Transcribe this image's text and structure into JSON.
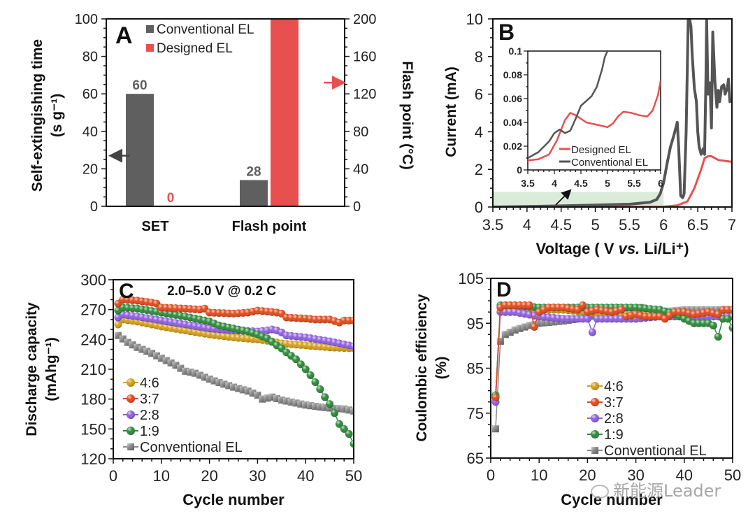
{
  "figure": {
    "watermark": "新能源Leader"
  },
  "chart_data": [
    {
      "panel": "A",
      "type": "bar",
      "categories": [
        "SET",
        "Flash point"
      ],
      "legend": [
        "Conventional EL",
        "Designed EL"
      ],
      "legend_position": "top-left",
      "series": [
        {
          "name": "Conventional EL",
          "color": "#5f5f5f",
          "axis": "left",
          "values": [
            60,
            null
          ]
        },
        {
          "name": "Conventional EL",
          "color": "#5f5f5f",
          "axis": "right",
          "values": [
            null,
            28
          ]
        },
        {
          "name": "Designed EL",
          "color": "#e8504f",
          "axis": "left",
          "values": [
            0,
            null
          ]
        },
        {
          "name": "Designed EL",
          "color": "#e8504f",
          "axis": "right",
          "values": [
            null,
            200
          ]
        }
      ],
      "data_labels": [
        {
          "text": "60",
          "category": "SET",
          "series": "Conventional EL",
          "color": "#5f5f5f"
        },
        {
          "text": "0",
          "category": "SET",
          "series": "Designed EL",
          "color": "#e8504f"
        },
        {
          "text": "28",
          "category": "Flash point",
          "series": "Conventional EL",
          "color": "#5f5f5f"
        }
      ],
      "ylabel": "Self-extingishing time",
      "ylabel_unit": "(s g⁻¹)",
      "y2label": "Flash point (°C)",
      "ylim": [
        0,
        100
      ],
      "y2lim": [
        0,
        200
      ],
      "yticks": [
        0,
        20,
        40,
        60,
        80,
        100
      ],
      "y2ticks": [
        0,
        40,
        80,
        120,
        160,
        200
      ],
      "annotations": [
        {
          "type": "arrow",
          "direction": "left",
          "axis": "left",
          "y": 27,
          "color": "#444444"
        },
        {
          "type": "arrow",
          "direction": "right",
          "axis": "right",
          "y": 132,
          "color": "#e8504f"
        }
      ]
    },
    {
      "panel": "B",
      "type": "line",
      "xlabel": "Voltage ( V vs. Li/Li⁺)",
      "xlabel_parts": [
        "Voltage ( V ",
        "vs.",
        " Li/Li⁺)"
      ],
      "ylabel": "Current (mA)",
      "xlim": [
        3.5,
        7
      ],
      "ylim": [
        0,
        10
      ],
      "xticks": [
        "3.5",
        "4",
        "4.5",
        "5",
        "5.5",
        "6",
        "6.5",
        "7"
      ],
      "yticks": [
        "0",
        "2",
        "4",
        "6",
        "8",
        "10"
      ],
      "highlight_region": {
        "x": [
          3.5,
          6
        ],
        "y": [
          0,
          0.8
        ],
        "color": "#d5e8d4"
      },
      "series": [
        {
          "name": "Conventional EL",
          "color": "#555555",
          "x": [
            3.5,
            4.0,
            4.5,
            5.0,
            5.5,
            5.8,
            5.9,
            5.95,
            6.0,
            6.05,
            6.1,
            6.15,
            6.2,
            6.22,
            6.25,
            6.28,
            6.3,
            6.33,
            6.36,
            6.38,
            6.4,
            6.42,
            6.45,
            6.48,
            6.5,
            6.52,
            6.55,
            6.58,
            6.6,
            6.62,
            6.63,
            6.65,
            6.68,
            6.7,
            6.72,
            6.75,
            6.78,
            6.8,
            6.82,
            6.85,
            6.88,
            6.9,
            6.93,
            6.95,
            6.97,
            7.0
          ],
          "y": [
            0.0,
            0.03,
            0.06,
            0.1,
            0.15,
            0.25,
            0.4,
            0.7,
            1.3,
            2.3,
            3.2,
            3.8,
            4.5,
            3.2,
            0.6,
            0.5,
            0.7,
            4.0,
            10.0,
            10.0,
            9.6,
            8.0,
            6.3,
            5.6,
            4.0,
            3.2,
            2.8,
            3.1,
            2.8,
            7.0,
            10.0,
            6.0,
            6.6,
            4.2,
            9.3,
            6.7,
            5.3,
            6.2,
            5.6,
            6.4,
            6.5,
            6.0,
            6.3,
            6.8,
            5.6,
            5.8
          ]
        },
        {
          "name": "Designed EL",
          "color": "#e8504f",
          "x": [
            3.5,
            5.0,
            6.0,
            6.2,
            6.35,
            6.45,
            6.55,
            6.6,
            6.65,
            6.7,
            6.75,
            6.8,
            6.9,
            7.0
          ],
          "y": [
            0.0,
            0.0,
            0.02,
            0.08,
            0.3,
            1.0,
            2.0,
            2.6,
            2.7,
            2.7,
            2.6,
            2.5,
            2.45,
            2.4
          ]
        }
      ],
      "inset": {
        "xlim": [
          3.5,
          6
        ],
        "ylim": [
          0,
          0.1
        ],
        "xticks": [
          "3.5",
          "4",
          "4.5",
          "5",
          "5.5",
          "6"
        ],
        "yticks": [
          "0",
          "0.02",
          "0.04",
          "0.06",
          "0.08",
          "0.1"
        ],
        "legend": [
          "Designed EL",
          "Conventional EL"
        ],
        "legend_position": "bottom-right",
        "series": [
          {
            "name": "Designed EL",
            "color": "#e8504f",
            "x": [
              3.5,
              3.7,
              3.9,
              4.05,
              4.2,
              4.3,
              4.4,
              4.6,
              4.8,
              5.0,
              5.1,
              5.2,
              5.3,
              5.45,
              5.6,
              5.75,
              5.85,
              5.95,
              6.0
            ],
            "y": [
              0.008,
              0.009,
              0.013,
              0.025,
              0.042,
              0.048,
              0.046,
              0.04,
              0.038,
              0.036,
              0.039,
              0.045,
              0.049,
              0.048,
              0.046,
              0.045,
              0.05,
              0.063,
              0.075
            ]
          },
          {
            "name": "Conventional EL",
            "color": "#555555",
            "x": [
              3.5,
              3.7,
              3.9,
              4.0,
              4.1,
              4.2,
              4.3,
              4.4,
              4.5,
              4.6,
              4.7,
              4.8,
              4.9,
              4.95,
              5.0
            ],
            "y": [
              0.01,
              0.015,
              0.024,
              0.031,
              0.034,
              0.031,
              0.033,
              0.043,
              0.054,
              0.058,
              0.062,
              0.07,
              0.085,
              0.095,
              0.1
            ]
          }
        ]
      },
      "annotations": [
        {
          "type": "arrow",
          "from": {
            "x": 4.4,
            "y": 0.1
          },
          "to": "inset",
          "color": "#111111"
        }
      ]
    },
    {
      "panel": "C",
      "type": "line",
      "title": "2.0–5.0 V @ 0.2 C",
      "xlabel": "Cycle number",
      "ylabel": "Discharge capacity",
      "ylabel_unit": "(mAhg⁻¹)",
      "xlim": [
        0,
        50
      ],
      "ylim": [
        120,
        300
      ],
      "xticks": [
        "0",
        "10",
        "20",
        "30",
        "40",
        "50"
      ],
      "yticks": [
        "120",
        "150",
        "180",
        "210",
        "240",
        "270",
        "300"
      ],
      "legend_position": "bottom-left",
      "series": [
        {
          "name": "4:6",
          "color": "#d4a017",
          "marker": "circle",
          "x": [
            1,
            2,
            5,
            10,
            15,
            20,
            25,
            30,
            33,
            35,
            40,
            45,
            50
          ],
          "y": [
            255,
            260,
            258,
            253,
            249,
            245,
            242,
            240,
            238,
            236,
            234,
            232,
            231
          ]
        },
        {
          "name": "3:7",
          "color": "#e24a1c",
          "marker": "circle",
          "x": [
            1,
            2,
            5,
            8,
            9,
            10,
            15,
            18,
            19,
            20,
            25,
            28,
            30,
            32,
            34,
            35,
            36,
            40,
            42,
            45,
            47,
            48,
            50
          ],
          "y": [
            276,
            280,
            279,
            277,
            276,
            272,
            271,
            270,
            271,
            267,
            266,
            267,
            269,
            268,
            267,
            266,
            262,
            261,
            260,
            260,
            257,
            259,
            259
          ]
        },
        {
          "name": "2:8",
          "color": "#8f5fe0",
          "marker": "circle",
          "x": [
            1,
            2,
            5,
            10,
            15,
            20,
            25,
            30,
            32,
            33,
            34,
            35,
            36,
            40,
            45,
            50
          ],
          "y": [
            262,
            265,
            263,
            259,
            255,
            251,
            249,
            248,
            249,
            250,
            249,
            247,
            244,
            242,
            238,
            233
          ]
        },
        {
          "name": "1:9",
          "color": "#2e8b3a",
          "marker": "circle",
          "x": [
            1,
            2,
            5,
            10,
            15,
            18,
            20,
            22,
            25,
            28,
            30,
            32,
            34,
            35,
            36,
            38,
            40,
            41,
            42,
            43,
            44,
            45,
            46,
            47,
            48,
            49,
            50
          ],
          "y": [
            269,
            272,
            271,
            267,
            263,
            260,
            258,
            254,
            251,
            248,
            245,
            241,
            234,
            231,
            227,
            220,
            210,
            204,
            197,
            190,
            182,
            175,
            166,
            155,
            150,
            145,
            135
          ]
        },
        {
          "name": "Conventional EL",
          "color": "#8a8a8a",
          "marker": "square",
          "x": [
            1,
            3,
            5,
            8,
            10,
            13,
            15,
            17,
            20,
            23,
            25,
            28,
            30,
            31,
            33,
            35,
            38,
            40,
            43,
            45,
            48,
            50
          ],
          "y": [
            244,
            237,
            232,
            226,
            221,
            214,
            208,
            206,
            200,
            195,
            192,
            188,
            184,
            180,
            182,
            179,
            176,
            174,
            172,
            171,
            170,
            168
          ]
        }
      ]
    },
    {
      "panel": "D",
      "type": "line",
      "xlabel": "Cycle number",
      "ylabel": "Coulombic efficiency",
      "ylabel_unit": "(%)",
      "xlim": [
        0,
        50
      ],
      "ylim": [
        65,
        105
      ],
      "xticks": [
        "0",
        "10",
        "20",
        "30",
        "40",
        "50"
      ],
      "yticks": [
        "65",
        "75",
        "85",
        "95",
        "105"
      ],
      "legend_position": "bottom-center",
      "series": [
        {
          "name": "4:6",
          "color": "#d4a017",
          "marker": "circle",
          "x": [
            1,
            2,
            5,
            10,
            15,
            20,
            25,
            30,
            35,
            40,
            45,
            50
          ],
          "y": [
            78.5,
            98.5,
            98.5,
            98,
            98,
            97.5,
            97,
            97,
            97,
            97,
            97,
            97
          ]
        },
        {
          "name": "3:7",
          "color": "#e24a1c",
          "marker": "circle",
          "x": [
            1,
            2,
            3,
            5,
            8,
            9,
            10,
            12,
            15,
            18,
            19,
            20,
            22,
            25,
            27,
            28,
            30,
            32,
            35,
            36,
            38,
            40,
            42,
            45,
            47,
            48,
            50
          ],
          "y": [
            78.5,
            98.5,
            99,
            99,
            99,
            94.2,
            97.5,
            98.5,
            98.5,
            98,
            99,
            97.5,
            98,
            97.5,
            98,
            96.5,
            97,
            96.5,
            96.5,
            96,
            97.5,
            97.5,
            97,
            97.5,
            97,
            98,
            98
          ]
        },
        {
          "name": "2:8",
          "color": "#8f5fe0",
          "marker": "circle",
          "x": [
            1,
            2,
            5,
            10,
            15,
            20,
            21,
            22,
            25,
            30,
            35,
            40,
            45,
            50
          ],
          "y": [
            77.5,
            97.5,
            97.5,
            96.5,
            96,
            96,
            93,
            96,
            96,
            96,
            96.5,
            96.5,
            96.5,
            96.5
          ]
        },
        {
          "name": "1:9",
          "color": "#2e8b3a",
          "marker": "circle",
          "x": [
            1,
            2,
            5,
            10,
            15,
            20,
            25,
            30,
            35,
            38,
            40,
            42,
            45,
            46,
            47,
            48,
            49,
            50
          ],
          "y": [
            79,
            99,
            99,
            98.5,
            98.5,
            98.5,
            98.5,
            98.5,
            98,
            97,
            96,
            95,
            95,
            94.5,
            92,
            96,
            96,
            94
          ]
        },
        {
          "name": "Conventional EL",
          "color": "#8a8a8a",
          "marker": "square",
          "x": [
            1,
            2,
            3,
            5,
            8,
            10,
            15,
            18,
            20,
            25,
            30,
            31,
            32,
            35,
            40,
            45,
            50
          ],
          "y": [
            71.5,
            91,
            92.5,
            93.5,
            94.5,
            95,
            95.5,
            96,
            96.5,
            97,
            97.5,
            98.5,
            97.5,
            97.5,
            98,
            98,
            98
          ]
        }
      ]
    }
  ]
}
